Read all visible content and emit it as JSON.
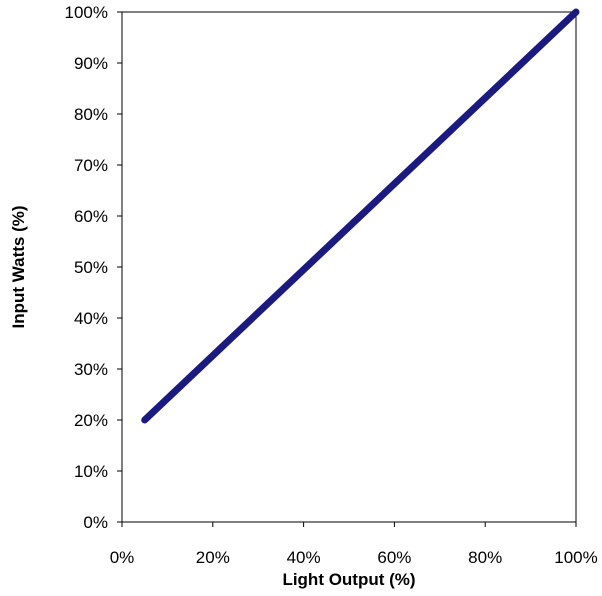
{
  "chart_data": {
    "type": "line",
    "title": "",
    "xlabel": "Light Output (%)",
    "ylabel": "Input Watts (%)",
    "xlim": [
      0,
      100
    ],
    "ylim": [
      0,
      100
    ],
    "x_ticks": [
      0,
      20,
      40,
      60,
      80,
      100
    ],
    "y_ticks": [
      0,
      10,
      20,
      30,
      40,
      50,
      60,
      70,
      80,
      90,
      100
    ],
    "x_tick_labels": [
      "0%",
      "20%",
      "40%",
      "60%",
      "80%",
      "100%"
    ],
    "y_tick_labels": [
      "0%",
      "10%",
      "20%",
      "30%",
      "40%",
      "50%",
      "60%",
      "70%",
      "80%",
      "90%",
      "100%"
    ],
    "grid": false,
    "legend": "none",
    "series": [
      {
        "x": [
          5,
          100
        ],
        "y": [
          20,
          100
        ],
        "color": "#1a1a80"
      }
    ]
  }
}
